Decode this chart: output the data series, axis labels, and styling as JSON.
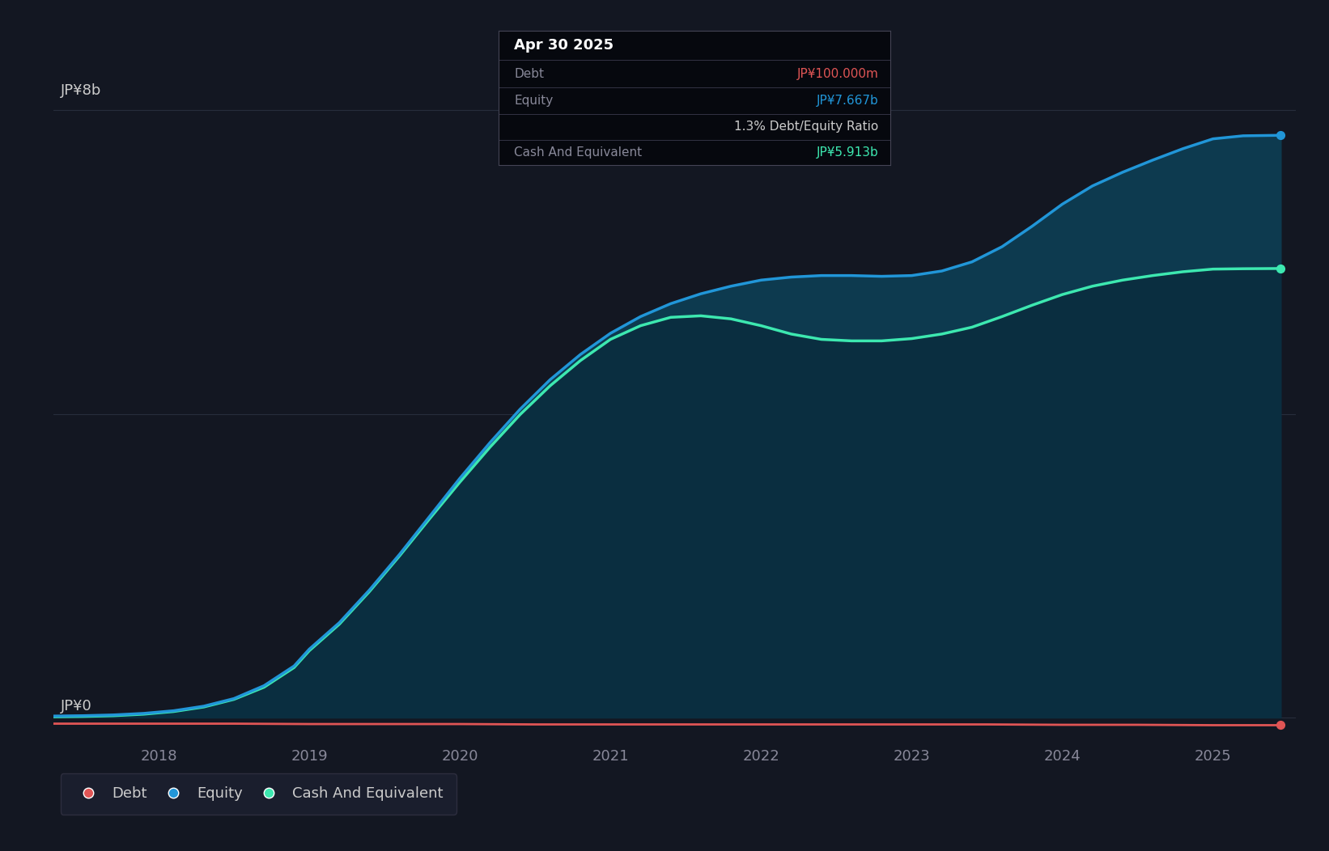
{
  "bg_color": "#131722",
  "plot_bg_color": "#131722",
  "grid_color": "#2a3040",
  "ylabel_top": "JP¥8b",
  "ylabel_bottom": "JP¥0",
  "x_tick_labels": [
    "2018",
    "2019",
    "2020",
    "2021",
    "2022",
    "2023",
    "2024",
    "2025"
  ],
  "ylim_max": 9000000000,
  "xlim_min": 2017.3,
  "xlim_max": 2025.55,
  "equity_color": "#2196d8",
  "cash_color": "#3de8b0",
  "debt_color": "#e05555",
  "fill_eq_cash_color": "#0d3a4f",
  "fill_cash_zero_color": "#0a2e40",
  "equity_data_x": [
    2017.3,
    2017.5,
    2017.7,
    2017.9,
    2018.1,
    2018.3,
    2018.5,
    2018.7,
    2018.9,
    2019.0,
    2019.2,
    2019.4,
    2019.6,
    2019.8,
    2020.0,
    2020.2,
    2020.4,
    2020.6,
    2020.8,
    2021.0,
    2021.2,
    2021.4,
    2021.6,
    2021.8,
    2022.0,
    2022.2,
    2022.4,
    2022.6,
    2022.8,
    2023.0,
    2023.2,
    2023.4,
    2023.6,
    2023.8,
    2024.0,
    2024.2,
    2024.4,
    2024.6,
    2024.8,
    2025.0,
    2025.2,
    2025.45
  ],
  "equity_data_y": [
    20000000,
    25000000,
    35000000,
    55000000,
    90000000,
    150000000,
    250000000,
    420000000,
    680000000,
    900000000,
    1250000000,
    1680000000,
    2150000000,
    2650000000,
    3150000000,
    3620000000,
    4060000000,
    4450000000,
    4780000000,
    5060000000,
    5280000000,
    5450000000,
    5580000000,
    5680000000,
    5760000000,
    5800000000,
    5820000000,
    5820000000,
    5810000000,
    5820000000,
    5880000000,
    6000000000,
    6200000000,
    6470000000,
    6760000000,
    7000000000,
    7180000000,
    7340000000,
    7490000000,
    7620000000,
    7660000000,
    7667000000
  ],
  "cash_data_x": [
    2017.3,
    2017.5,
    2017.7,
    2017.9,
    2018.1,
    2018.3,
    2018.5,
    2018.7,
    2018.9,
    2019.0,
    2019.2,
    2019.4,
    2019.6,
    2019.8,
    2020.0,
    2020.2,
    2020.4,
    2020.6,
    2020.8,
    2021.0,
    2021.2,
    2021.4,
    2021.6,
    2021.8,
    2022.0,
    2022.2,
    2022.4,
    2022.6,
    2022.8,
    2023.0,
    2023.2,
    2023.4,
    2023.6,
    2023.8,
    2024.0,
    2024.2,
    2024.4,
    2024.6,
    2024.8,
    2025.0,
    2025.2,
    2025.45
  ],
  "cash_data_y": [
    10000000,
    15000000,
    25000000,
    45000000,
    80000000,
    140000000,
    240000000,
    400000000,
    660000000,
    880000000,
    1230000000,
    1660000000,
    2130000000,
    2620000000,
    3100000000,
    3560000000,
    3990000000,
    4370000000,
    4700000000,
    4980000000,
    5160000000,
    5270000000,
    5290000000,
    5250000000,
    5160000000,
    5050000000,
    4980000000,
    4960000000,
    4960000000,
    4990000000,
    5050000000,
    5140000000,
    5280000000,
    5430000000,
    5570000000,
    5680000000,
    5760000000,
    5820000000,
    5870000000,
    5905000000,
    5910000000,
    5913000000
  ],
  "debt_data_x": [
    2017.3,
    2017.5,
    2018.0,
    2018.5,
    2019.0,
    2019.5,
    2020.0,
    2020.5,
    2021.0,
    2021.5,
    2022.0,
    2022.5,
    2023.0,
    2023.5,
    2024.0,
    2024.5,
    2025.0,
    2025.45
  ],
  "debt_data_y": [
    -80000000,
    -80000000,
    -80000000,
    -80000000,
    -85000000,
    -85000000,
    -85000000,
    -90000000,
    -90000000,
    -90000000,
    -90000000,
    -90000000,
    -90000000,
    -90000000,
    -95000000,
    -95000000,
    -100000000,
    -100000000
  ],
  "tooltip_date": "Apr 30 2025",
  "tooltip_debt_label": "Debt",
  "tooltip_debt_value": "JP¥100.000m",
  "tooltip_equity_label": "Equity",
  "tooltip_equity_value": "JP¥7.667b",
  "tooltip_ratio": "1.3% Debt/Equity Ratio",
  "tooltip_cash_label": "Cash And Equivalent",
  "tooltip_cash_value": "JP¥5.913b",
  "legend_items": [
    "Debt",
    "Equity",
    "Cash And Equivalent"
  ],
  "legend_colors": [
    "#e05555",
    "#2196d8",
    "#3de8b0"
  ]
}
